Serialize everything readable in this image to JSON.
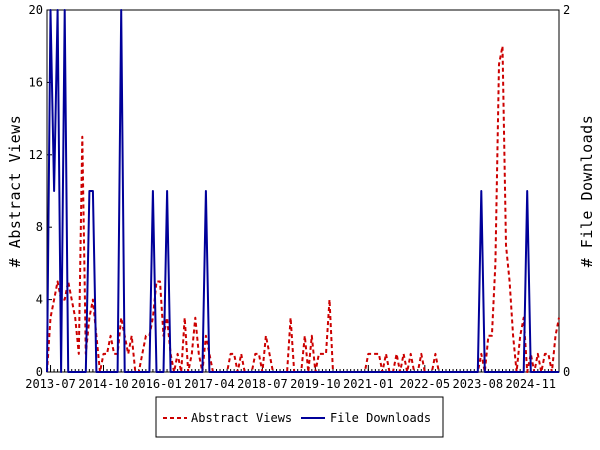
{
  "chart_data": {
    "type": "line",
    "title": "",
    "xlabel": "",
    "ylabel_left": "# Abstract Views",
    "ylabel_right": "# File Downloads",
    "ylim_left": [
      0,
      20
    ],
    "ylim_right": [
      0,
      2
    ],
    "yticks_left": [
      "0",
      "4",
      "8",
      "12",
      "16",
      "20"
    ],
    "yticks_right": [
      "0",
      "2"
    ],
    "x_start": "2013-06",
    "x_end": "2025-07",
    "xtick_labels": [
      "2013-07",
      "2014-10",
      "2016-01",
      "2017-04",
      "2018-07",
      "2019-10",
      "2021-01",
      "2022-05",
      "2023-08",
      "2024-11"
    ],
    "grid": false,
    "legend_position": "bottom-center",
    "series": [
      {
        "name": "Abstract Views",
        "axis": "left",
        "color": "#cc0000",
        "style": "dashed",
        "points": [
          [
            "2013-06",
            0
          ],
          [
            "2013-07",
            3
          ],
          [
            "2013-08",
            4
          ],
          [
            "2013-09",
            5
          ],
          [
            "2013-10",
            4
          ],
          [
            "2013-11",
            4
          ],
          [
            "2013-12",
            5
          ],
          [
            "2014-01",
            4
          ],
          [
            "2014-02",
            3
          ],
          [
            "2014-03",
            1
          ],
          [
            "2014-04",
            13
          ],
          [
            "2014-05",
            1
          ],
          [
            "2014-06",
            3
          ],
          [
            "2014-07",
            4
          ],
          [
            "2014-08",
            2
          ],
          [
            "2014-09",
            0
          ],
          [
            "2014-10",
            1
          ],
          [
            "2014-11",
            1
          ],
          [
            "2014-12",
            2
          ],
          [
            "2015-01",
            1
          ],
          [
            "2015-02",
            1
          ],
          [
            "2015-03",
            3
          ],
          [
            "2015-04",
            2
          ],
          [
            "2015-05",
            1
          ],
          [
            "2015-06",
            2
          ],
          [
            "2015-07",
            0
          ],
          [
            "2015-08",
            0
          ],
          [
            "2015-09",
            1
          ],
          [
            "2015-10",
            2
          ],
          [
            "2015-11",
            2
          ],
          [
            "2015-12",
            3
          ],
          [
            "2016-01",
            5
          ],
          [
            "2016-02",
            5
          ],
          [
            "2016-03",
            2
          ],
          [
            "2016-04",
            3
          ],
          [
            "2016-05",
            1
          ],
          [
            "2016-06",
            0
          ],
          [
            "2016-07",
            1
          ],
          [
            "2016-08",
            0
          ],
          [
            "2016-09",
            3
          ],
          [
            "2016-10",
            0
          ],
          [
            "2016-11",
            1
          ],
          [
            "2016-12",
            3
          ],
          [
            "2017-01",
            1
          ],
          [
            "2017-02",
            0
          ],
          [
            "2017-03",
            2
          ],
          [
            "2017-04",
            1
          ],
          [
            "2017-05",
            0
          ],
          [
            "2017-06",
            0
          ],
          [
            "2017-07",
            0
          ],
          [
            "2017-08",
            0
          ],
          [
            "2017-09",
            0
          ],
          [
            "2017-10",
            1
          ],
          [
            "2017-11",
            1
          ],
          [
            "2017-12",
            0
          ],
          [
            "2018-01",
            1
          ],
          [
            "2018-02",
            0
          ],
          [
            "2018-03",
            0
          ],
          [
            "2018-04",
            0
          ],
          [
            "2018-05",
            1
          ],
          [
            "2018-06",
            1
          ],
          [
            "2018-07",
            0
          ],
          [
            "2018-08",
            2
          ],
          [
            "2018-09",
            1
          ],
          [
            "2018-10",
            0
          ],
          [
            "2018-11",
            0
          ],
          [
            "2018-12",
            0
          ],
          [
            "2019-01",
            0
          ],
          [
            "2019-02",
            0
          ],
          [
            "2019-03",
            3
          ],
          [
            "2019-04",
            0
          ],
          [
            "2019-05",
            0
          ],
          [
            "2019-06",
            0
          ],
          [
            "2019-07",
            2
          ],
          [
            "2019-08",
            0
          ],
          [
            "2019-09",
            2
          ],
          [
            "2019-10",
            0
          ],
          [
            "2019-11",
            1
          ],
          [
            "2019-12",
            1
          ],
          [
            "2020-01",
            1
          ],
          [
            "2020-02",
            4
          ],
          [
            "2020-03",
            0
          ],
          [
            "2020-04",
            0
          ],
          [
            "2020-05",
            0
          ],
          [
            "2020-06",
            0
          ],
          [
            "2020-07",
            0
          ],
          [
            "2020-08",
            0
          ],
          [
            "2020-09",
            0
          ],
          [
            "2020-10",
            0
          ],
          [
            "2020-11",
            0
          ],
          [
            "2020-12",
            0
          ],
          [
            "2021-01",
            1
          ],
          [
            "2021-02",
            1
          ],
          [
            "2021-03",
            1
          ],
          [
            "2021-04",
            1
          ],
          [
            "2021-05",
            0
          ],
          [
            "2021-06",
            1
          ],
          [
            "2021-07",
            0
          ],
          [
            "2021-08",
            0
          ],
          [
            "2021-09",
            1
          ],
          [
            "2021-10",
            0
          ],
          [
            "2021-11",
            1
          ],
          [
            "2021-12",
            0
          ],
          [
            "2022-01",
            1
          ],
          [
            "2022-02",
            0
          ],
          [
            "2022-03",
            0
          ],
          [
            "2022-04",
            1
          ],
          [
            "2022-05",
            0
          ],
          [
            "2022-06",
            0
          ],
          [
            "2022-07",
            0
          ],
          [
            "2022-08",
            1
          ],
          [
            "2022-09",
            0
          ],
          [
            "2022-10",
            0
          ],
          [
            "2022-11",
            0
          ],
          [
            "2022-12",
            0
          ],
          [
            "2023-01",
            0
          ],
          [
            "2023-02",
            0
          ],
          [
            "2023-03",
            0
          ],
          [
            "2023-04",
            0
          ],
          [
            "2023-05",
            0
          ],
          [
            "2023-06",
            0
          ],
          [
            "2023-07",
            0
          ],
          [
            "2023-08",
            0
          ],
          [
            "2023-09",
            1
          ],
          [
            "2023-10",
            0
          ],
          [
            "2023-11",
            2
          ],
          [
            "2023-12",
            2
          ],
          [
            "2024-01",
            6
          ],
          [
            "2024-02",
            17
          ],
          [
            "2024-03",
            18
          ],
          [
            "2024-04",
            7
          ],
          [
            "2024-05",
            5
          ],
          [
            "2024-06",
            2
          ],
          [
            "2024-07",
            0
          ],
          [
            "2024-08",
            2
          ],
          [
            "2024-09",
            3
          ],
          [
            "2024-10",
            0
          ],
          [
            "2024-11",
            1
          ],
          [
            "2024-12",
            0
          ],
          [
            "2025-01",
            1
          ],
          [
            "2025-02",
            0
          ],
          [
            "2025-03",
            1
          ],
          [
            "2025-04",
            1
          ],
          [
            "2025-05",
            0
          ],
          [
            "2025-06",
            2
          ],
          [
            "2025-07",
            3
          ]
        ]
      },
      {
        "name": "File Downloads",
        "axis": "right",
        "color": "#000099",
        "style": "solid",
        "points": [
          [
            "2013-06",
            0
          ],
          [
            "2013-07",
            2
          ],
          [
            "2013-08",
            1
          ],
          [
            "2013-09",
            2
          ],
          [
            "2013-10",
            0
          ],
          [
            "2013-11",
            2
          ],
          [
            "2013-12",
            0
          ],
          [
            "2014-01",
            0
          ],
          [
            "2014-02",
            0
          ],
          [
            "2014-03",
            0
          ],
          [
            "2014-04",
            0
          ],
          [
            "2014-05",
            0
          ],
          [
            "2014-06",
            1
          ],
          [
            "2014-07",
            1
          ],
          [
            "2014-08",
            0
          ],
          [
            "2014-09",
            0
          ],
          [
            "2014-10",
            0
          ],
          [
            "2014-11",
            0
          ],
          [
            "2014-12",
            0
          ],
          [
            "2015-01",
            0
          ],
          [
            "2015-02",
            0
          ],
          [
            "2015-03",
            2
          ],
          [
            "2015-04",
            0
          ],
          [
            "2015-05",
            0
          ],
          [
            "2015-06",
            0
          ],
          [
            "2015-07",
            0
          ],
          [
            "2015-08",
            0
          ],
          [
            "2015-09",
            0
          ],
          [
            "2015-10",
            0
          ],
          [
            "2015-11",
            0
          ],
          [
            "2015-12",
            1
          ],
          [
            "2016-01",
            0
          ],
          [
            "2016-02",
            0
          ],
          [
            "2016-03",
            0
          ],
          [
            "2016-04",
            1
          ],
          [
            "2016-05",
            0
          ],
          [
            "2016-06",
            0
          ],
          [
            "2016-07",
            0
          ],
          [
            "2016-08",
            0
          ],
          [
            "2016-09",
            0
          ],
          [
            "2016-10",
            0
          ],
          [
            "2016-11",
            0
          ],
          [
            "2016-12",
            0
          ],
          [
            "2017-01",
            0
          ],
          [
            "2017-02",
            0
          ],
          [
            "2017-03",
            1
          ],
          [
            "2017-04",
            0
          ],
          [
            "2017-05",
            0
          ],
          [
            "2017-06",
            0
          ],
          [
            "2017-07",
            0
          ],
          [
            "2017-08",
            0
          ],
          [
            "2017-09",
            0
          ],
          [
            "2017-10",
            0
          ],
          [
            "2017-11",
            0
          ],
          [
            "2017-12",
            0
          ],
          [
            "2018-01",
            0
          ],
          [
            "2018-02",
            0
          ],
          [
            "2018-03",
            0
          ],
          [
            "2018-04",
            0
          ],
          [
            "2018-05",
            0
          ],
          [
            "2018-06",
            0
          ],
          [
            "2018-07",
            0
          ],
          [
            "2018-08",
            0
          ],
          [
            "2018-09",
            0
          ],
          [
            "2018-10",
            0
          ],
          [
            "2018-11",
            0
          ],
          [
            "2018-12",
            0
          ],
          [
            "2019-01",
            0
          ],
          [
            "2019-02",
            0
          ],
          [
            "2019-03",
            0
          ],
          [
            "2019-04",
            0
          ],
          [
            "2019-05",
            0
          ],
          [
            "2019-06",
            0
          ],
          [
            "2019-07",
            0
          ],
          [
            "2019-08",
            0
          ],
          [
            "2019-09",
            0
          ],
          [
            "2019-10",
            0
          ],
          [
            "2019-11",
            0
          ],
          [
            "2019-12",
            0
          ],
          [
            "2020-01",
            0
          ],
          [
            "2020-02",
            0
          ],
          [
            "2020-03",
            0
          ],
          [
            "2020-04",
            0
          ],
          [
            "2020-05",
            0
          ],
          [
            "2020-06",
            0
          ],
          [
            "2020-07",
            0
          ],
          [
            "2020-08",
            0
          ],
          [
            "2020-09",
            0
          ],
          [
            "2020-10",
            0
          ],
          [
            "2020-11",
            0
          ],
          [
            "2020-12",
            0
          ],
          [
            "2021-01",
            0
          ],
          [
            "2021-02",
            0
          ],
          [
            "2021-03",
            0
          ],
          [
            "2021-04",
            0
          ],
          [
            "2021-05",
            0
          ],
          [
            "2021-06",
            0
          ],
          [
            "2021-07",
            0
          ],
          [
            "2021-08",
            0
          ],
          [
            "2021-09",
            0
          ],
          [
            "2021-10",
            0
          ],
          [
            "2021-11",
            0
          ],
          [
            "2021-12",
            0
          ],
          [
            "2022-01",
            0
          ],
          [
            "2022-02",
            0
          ],
          [
            "2022-03",
            0
          ],
          [
            "2022-04",
            0
          ],
          [
            "2022-05",
            0
          ],
          [
            "2022-06",
            0
          ],
          [
            "2022-07",
            0
          ],
          [
            "2022-08",
            0
          ],
          [
            "2022-09",
            0
          ],
          [
            "2022-10",
            0
          ],
          [
            "2022-11",
            0
          ],
          [
            "2022-12",
            0
          ],
          [
            "2023-01",
            0
          ],
          [
            "2023-02",
            0
          ],
          [
            "2023-03",
            0
          ],
          [
            "2023-04",
            0
          ],
          [
            "2023-05",
            0
          ],
          [
            "2023-06",
            0
          ],
          [
            "2023-07",
            0
          ],
          [
            "2023-08",
            0
          ],
          [
            "2023-09",
            1
          ],
          [
            "2023-10",
            0
          ],
          [
            "2023-11",
            0
          ],
          [
            "2023-12",
            0
          ],
          [
            "2024-01",
            0
          ],
          [
            "2024-02",
            0
          ],
          [
            "2024-03",
            0
          ],
          [
            "2024-04",
            0
          ],
          [
            "2024-05",
            0
          ],
          [
            "2024-06",
            0
          ],
          [
            "2024-07",
            0
          ],
          [
            "2024-08",
            0
          ],
          [
            "2024-09",
            0
          ],
          [
            "2024-10",
            1
          ],
          [
            "2024-11",
            0
          ],
          [
            "2024-12",
            0
          ],
          [
            "2025-01",
            0
          ],
          [
            "2025-02",
            0
          ],
          [
            "2025-03",
            0
          ],
          [
            "2025-04",
            0
          ],
          [
            "2025-05",
            0
          ],
          [
            "2025-06",
            0
          ],
          [
            "2025-07",
            0
          ]
        ]
      }
    ]
  }
}
